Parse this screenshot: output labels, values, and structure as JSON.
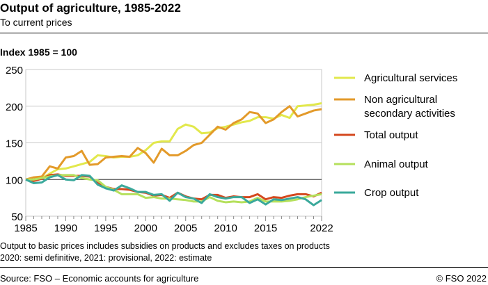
{
  "header": {
    "title": "Output of agriculture, 1985-2022",
    "subtitle": "To current prices"
  },
  "notes": [
    "Output to basic prices includes subsidies on products and excludes taxes on products",
    "2020: semi definitive, 2021: provisional, 2022: estimate"
  ],
  "footer": {
    "source": "Source: FSO – Economic accounts for agriculture",
    "copyright": "© FSO 2022"
  },
  "chart_data": {
    "type": "line",
    "title": "Output of agriculture, 1985-2022",
    "subtitle": "To current prices",
    "ylabel": "Index 1985 = 100",
    "ylim": [
      50,
      250
    ],
    "yticks": [
      50,
      100,
      150,
      200,
      250
    ],
    "xlim": [
      1985,
      2022
    ],
    "xticks": [
      1985,
      1990,
      1995,
      2000,
      2005,
      2010,
      2015,
      2022
    ],
    "grid": true,
    "legend_position": "right",
    "x": [
      1985,
      1986,
      1987,
      1988,
      1989,
      1990,
      1991,
      1992,
      1993,
      1994,
      1995,
      1996,
      1997,
      1998,
      1999,
      2000,
      2001,
      2002,
      2003,
      2004,
      2005,
      2006,
      2007,
      2008,
      2009,
      2010,
      2011,
      2012,
      2013,
      2014,
      2015,
      2016,
      2017,
      2018,
      2019,
      2020,
      2021,
      2022
    ],
    "series": [
      {
        "name": "Agricultural services",
        "color": "#e2e84c",
        "values": [
          100,
          98,
          102,
          108,
          114,
          115,
          118,
          121,
          124,
          133,
          132,
          130,
          131,
          131,
          133,
          140,
          150,
          152,
          152,
          169,
          175,
          172,
          163,
          164,
          170,
          172,
          175,
          178,
          180,
          185,
          185,
          183,
          188,
          184,
          200,
          201,
          202,
          204
        ]
      },
      {
        "name": "Non agricultural secondary activities",
        "color": "#e39a2a",
        "values": [
          100,
          103,
          104,
          118,
          115,
          130,
          132,
          139,
          120,
          121,
          130,
          131,
          132,
          131,
          143,
          136,
          123,
          142,
          133,
          133,
          139,
          147,
          150,
          161,
          172,
          168,
          177,
          182,
          192,
          190,
          177,
          182,
          192,
          200,
          186,
          190,
          194,
          196
        ]
      },
      {
        "name": "Total output",
        "color": "#d4481e",
        "values": [
          100,
          98,
          101,
          106,
          107,
          105,
          105,
          105,
          104,
          95,
          90,
          87,
          87,
          86,
          83,
          82,
          78,
          79,
          75,
          82,
          77,
          74,
          73,
          79,
          79,
          75,
          77,
          76,
          76,
          80,
          73,
          76,
          75,
          78,
          80,
          80,
          77,
          82
        ]
      },
      {
        "name": "Animal output",
        "color": "#b5e05c",
        "values": [
          100,
          100,
          102,
          104,
          106,
          106,
          106,
          102,
          100,
          99,
          90,
          86,
          80,
          80,
          80,
          75,
          76,
          74,
          74,
          73,
          72,
          70,
          70,
          76,
          71,
          69,
          70,
          69,
          70,
          75,
          70,
          70,
          70,
          71,
          73,
          76,
          78,
          80
        ]
      },
      {
        "name": "Crop output",
        "color": "#3aa99b",
        "values": [
          100,
          95,
          96,
          103,
          106,
          100,
          99,
          106,
          105,
          93,
          88,
          85,
          92,
          88,
          83,
          83,
          79,
          80,
          71,
          82,
          76,
          74,
          68,
          80,
          76,
          74,
          76,
          76,
          68,
          73,
          66,
          73,
          72,
          74,
          76,
          73,
          65,
          72
        ]
      }
    ],
    "legend_labels": [
      [
        "Agricultural services"
      ],
      [
        "Non agricultural",
        "secondary activities"
      ],
      [
        "Total output"
      ],
      [
        "Animal output"
      ],
      [
        "Crop output"
      ]
    ]
  }
}
